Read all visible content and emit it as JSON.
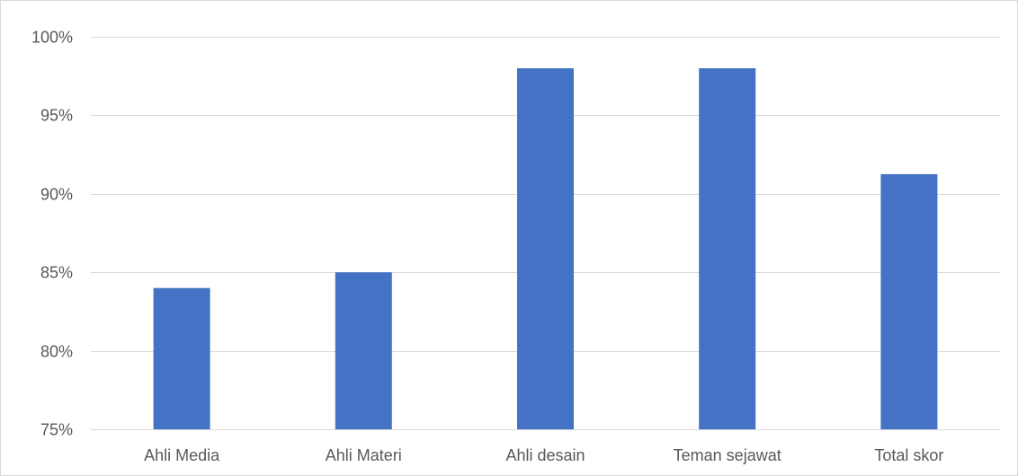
{
  "chart_data": {
    "type": "bar",
    "title": "",
    "xlabel": "",
    "ylabel": "",
    "categories": [
      "Ahli Media",
      "Ahli Materi",
      "Ahli desain",
      "Teman sejawat",
      "Total skor"
    ],
    "values": [
      84,
      85,
      98,
      98,
      91.25
    ],
    "ylim": [
      75,
      100
    ],
    "yticks": [
      75,
      80,
      85,
      90,
      95,
      100
    ],
    "ytick_labels": [
      "75%",
      "80%",
      "85%",
      "90%",
      "95%",
      "100%"
    ],
    "grid": true,
    "legend": "none",
    "colors": {
      "bar": "#4472c4",
      "grid": "#d9d9d9",
      "text": "#595959"
    }
  }
}
